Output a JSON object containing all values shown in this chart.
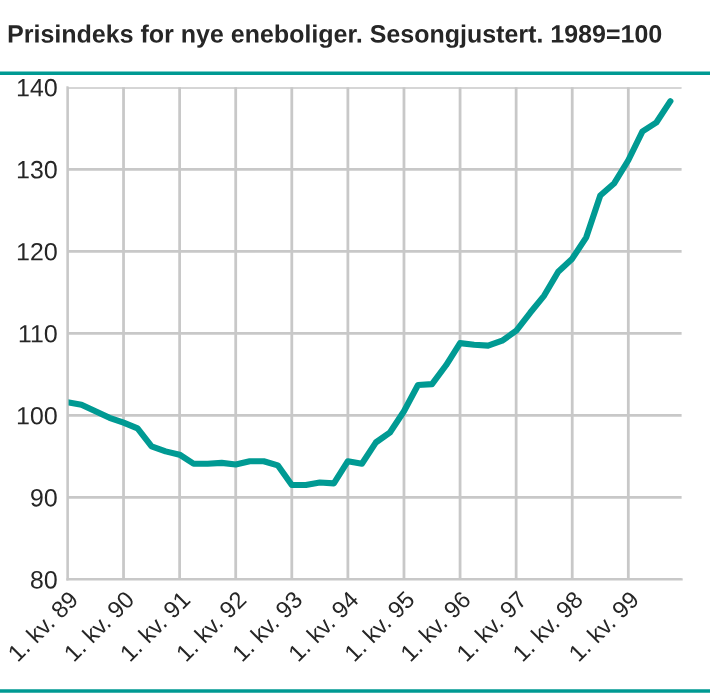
{
  "chart_data": {
    "type": "line",
    "title": "Prisindeks for nye eneboliger. Sesongjustert. 1989=100",
    "categories": [
      "1. kv. 89",
      null,
      null,
      null,
      "1. kv. 90",
      null,
      null,
      null,
      "1. kv. 91",
      null,
      null,
      null,
      "1. kv. 92",
      null,
      null,
      null,
      "1. kv. 93",
      null,
      null,
      null,
      "1. kv. 94",
      null,
      null,
      null,
      "1. kv. 95",
      null,
      null,
      null,
      "1. kv. 96",
      null,
      null,
      null,
      "1. kv. 97",
      null,
      null,
      null,
      "1. kv. 98",
      null,
      null,
      null,
      "1. kv. 99",
      null,
      null,
      null
    ],
    "series": [
      {
        "color": "#009a93",
        "values": [
          101.6,
          101.3,
          100.5,
          99.7,
          99.1,
          98.4,
          96.2,
          95.6,
          95.2,
          94.1,
          94.1,
          94.2,
          94.0,
          94.4,
          94.4,
          93.9,
          91.5,
          91.5,
          91.8,
          91.7,
          94.4,
          94.1,
          96.7,
          97.9,
          100.5,
          103.7,
          103.8,
          106.1,
          108.8,
          108.6,
          108.5,
          109.1,
          110.3,
          112.5,
          114.6,
          117.5,
          119.1,
          121.7,
          126.8,
          128.3,
          131.1,
          134.6,
          135.7,
          138.3
        ]
      }
    ],
    "ylim": [
      80,
      140
    ],
    "yticks": [
      80,
      90,
      100,
      110,
      120,
      130,
      140
    ],
    "grid": true,
    "line_style": "solid",
    "marker": "none"
  }
}
